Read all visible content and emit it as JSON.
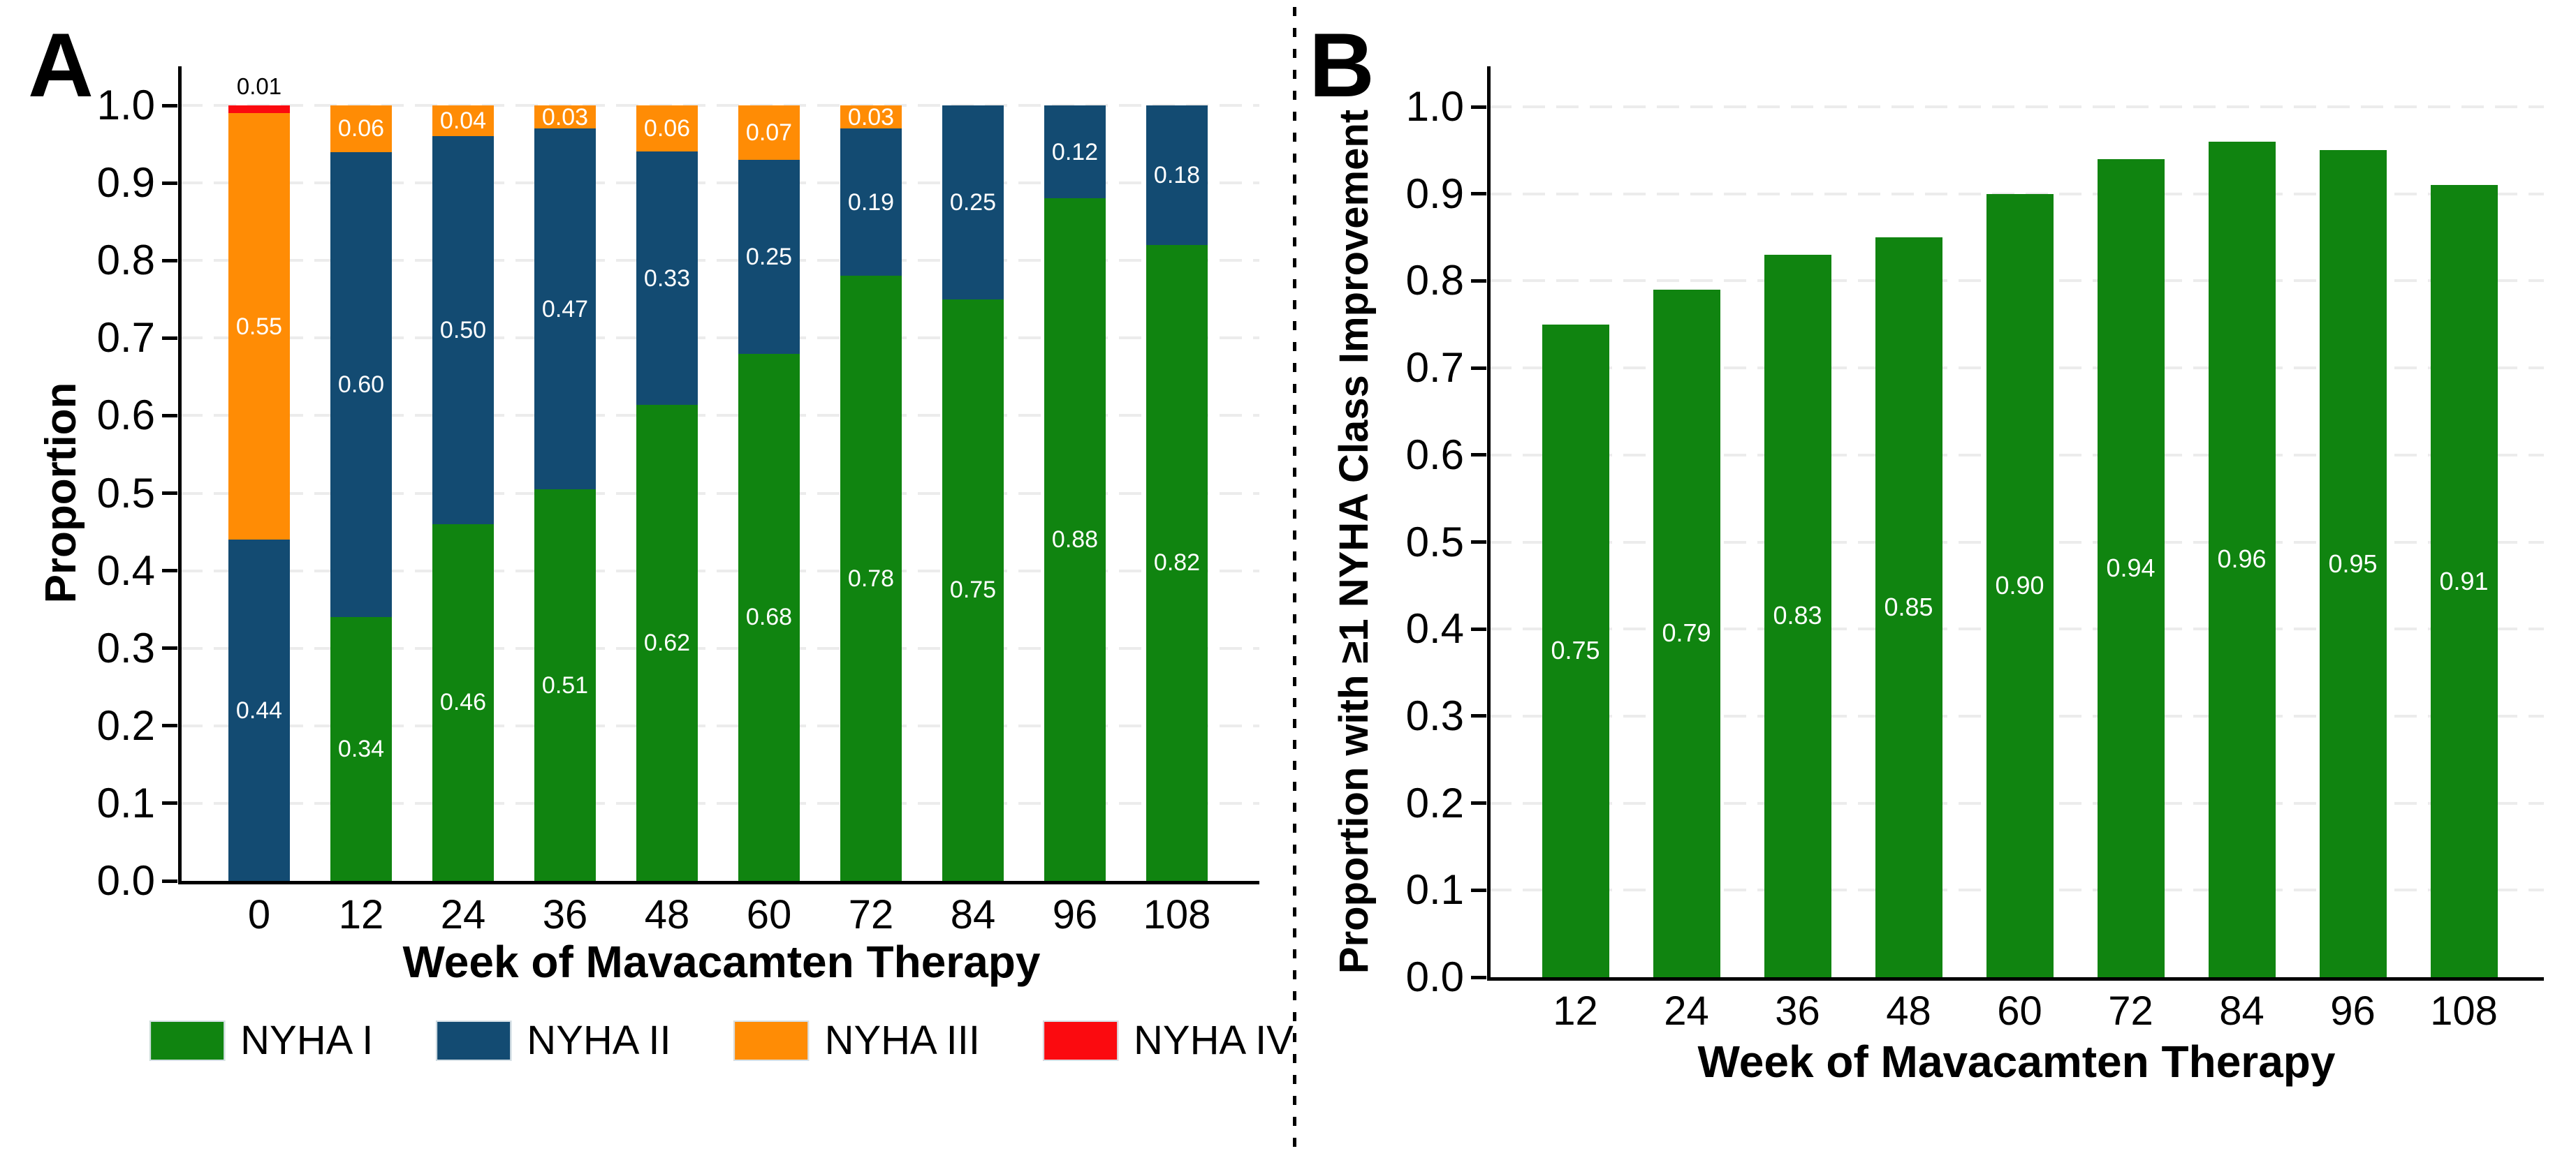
{
  "colors": {
    "nyha1": "#108410",
    "nyha2": "#134B72",
    "nyha3": "#FF8C05",
    "nyha4": "#FB0A0F",
    "axis": "#000000",
    "grid": "#ECECEC"
  },
  "chart_data": [
    {
      "panel": "A",
      "type": "bar",
      "stacked": true,
      "normalized": true,
      "xlabel": "Week of Mavacamten Therapy",
      "ylabel": "Proportion",
      "categories": [
        "0",
        "12",
        "24",
        "36",
        "48",
        "60",
        "72",
        "84",
        "96",
        "108"
      ],
      "series": [
        {
          "name": "NYHA I",
          "color": "nyha1",
          "label_position": "center",
          "values": [
            0,
            0.34,
            0.46,
            0.51,
            0.62,
            0.68,
            0.78,
            0.75,
            0.88,
            0.82
          ]
        },
        {
          "name": "NYHA II",
          "color": "nyha2",
          "label_position": "center",
          "values": [
            0.44,
            0.6,
            0.5,
            0.47,
            0.33,
            0.25,
            0.19,
            0.25,
            0.12,
            0.18
          ]
        },
        {
          "name": "NYHA III",
          "color": "nyha3",
          "label_position": "center",
          "values": [
            0.55,
            0.06,
            0.04,
            0.03,
            0.06,
            0.07,
            0.03,
            0,
            0,
            0
          ]
        },
        {
          "name": "NYHA IV",
          "color": "nyha4",
          "label_position": "above",
          "values": [
            0.01,
            0,
            0,
            0,
            0,
            0,
            0,
            0,
            0,
            0
          ]
        }
      ],
      "ylim": [
        0,
        1
      ],
      "ytick_step": 0.1,
      "grid": "horizontal-dashed",
      "legend_position": "bottom"
    },
    {
      "panel": "B",
      "type": "bar",
      "stacked": false,
      "normalized": false,
      "xlabel": "Week of Mavacamten Therapy",
      "ylabel": "Proportion with ≥1 NYHA Class Improvement",
      "categories": [
        "12",
        "24",
        "36",
        "48",
        "60",
        "72",
        "84",
        "96",
        "108"
      ],
      "series": [
        {
          "name": "NYHA I",
          "color": "nyha1",
          "label_position": "center",
          "values": [
            0.75,
            0.79,
            0.83,
            0.85,
            0.9,
            0.94,
            0.96,
            0.95,
            0.91
          ]
        }
      ],
      "ylim": [
        0,
        1
      ],
      "ytick_step": 0.1,
      "grid": "horizontal-dashed",
      "legend_position": "none"
    }
  ],
  "legend": {
    "items": [
      {
        "label": "NYHA I",
        "color": "nyha1"
      },
      {
        "label": "NYHA II",
        "color": "nyha2"
      },
      {
        "label": "NYHA III",
        "color": "nyha3"
      },
      {
        "label": "NYHA IV",
        "color": "nyha4"
      }
    ]
  }
}
